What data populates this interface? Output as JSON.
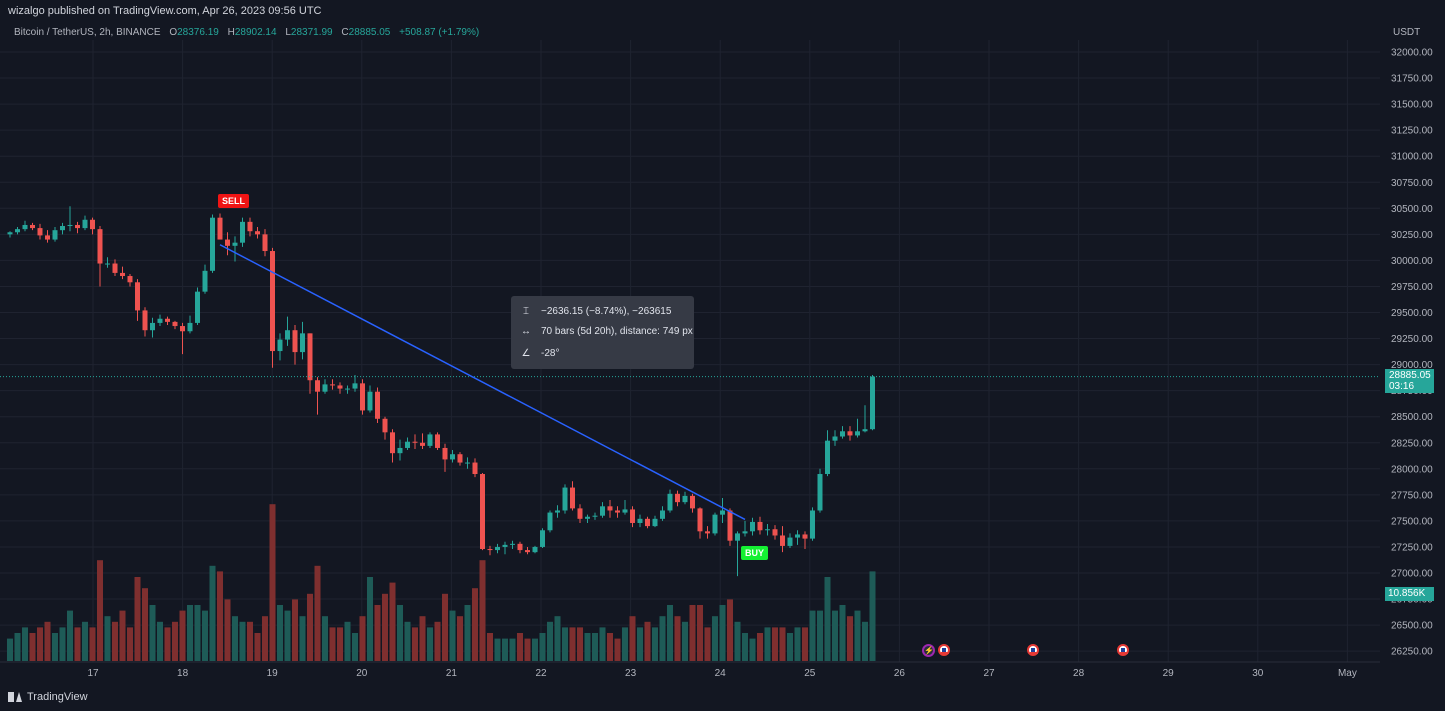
{
  "header": {
    "publisher_text": "wizalgo published on TradingView.com, Apr 26, 2023 09:56 UTC",
    "symbol": "Bitcoin / TetherUS, 2h, BINANCE",
    "o_label": "O",
    "o_value": "28376.19",
    "h_label": "H",
    "h_value": "28902.14",
    "l_label": "L",
    "l_value": "28371.99",
    "c_label": "C",
    "c_value": "28885.05",
    "change": "+508.87 (+1.79%)"
  },
  "footer": {
    "brand": "TradingView"
  },
  "measure_tooltip": {
    "price_range_icon": "vertical-range-icon",
    "price_range": "−2636.15 (−8.74%), −263615",
    "bars_icon": "horizontal-range-icon",
    "bars": "70 bars (5d 20h), distance: 749 px",
    "angle_icon": "angle-icon",
    "angle": "-28°"
  },
  "signals": {
    "sell": "SELL",
    "buy": "BUY"
  },
  "last_price": {
    "value": "28885.05",
    "countdown": "03:16"
  },
  "last_volume": "10.856K",
  "colors": {
    "up": "#26a69a",
    "down": "#ef5350",
    "up_volume": "#1e5b57",
    "down_volume": "#7f2f2f",
    "trendline": "#2962ff",
    "background": "#131722"
  },
  "events": [
    {
      "icon": "lightning-icon",
      "day": "26"
    },
    {
      "icon": "us-flag-icon",
      "day": "26"
    },
    {
      "icon": "us-flag-icon",
      "day": "27"
    },
    {
      "icon": "us-flag-icon",
      "day": "28"
    }
  ],
  "chart_data": {
    "type": "candlestick",
    "quote_currency": "USDT",
    "interval": "2h",
    "ylim": [
      26250,
      32000
    ],
    "y_ticks": [
      "32000.00",
      "31750.00",
      "31500.00",
      "31250.00",
      "31000.00",
      "30750.00",
      "30500.00",
      "30250.00",
      "30000.00",
      "29750.00",
      "29500.00",
      "29250.00",
      "29000.00",
      "28750.00",
      "28500.00",
      "28250.00",
      "28000.00",
      "27750.00",
      "27500.00",
      "27250.00",
      "27000.00",
      "26750.00",
      "26500.00",
      "26250.00"
    ],
    "x_ticks": [
      "17",
      "18",
      "19",
      "20",
      "21",
      "22",
      "23",
      "24",
      "25",
      "26",
      "27",
      "28",
      "29",
      "30",
      "May"
    ],
    "grid": true,
    "trendline": {
      "from": {
        "bar": 28,
        "price": 30150
      },
      "to": {
        "bar": 98,
        "price": 27514
      }
    },
    "candles": [
      [
        30250,
        30280,
        30220,
        30270,
        2
      ],
      [
        30270,
        30320,
        30250,
        30300,
        2.5
      ],
      [
        30300,
        30380,
        30280,
        30340,
        3
      ],
      [
        30340,
        30360,
        30290,
        30310,
        2.5
      ],
      [
        30310,
        30350,
        30200,
        30240,
        3
      ],
      [
        30240,
        30290,
        30170,
        30200,
        3.5
      ],
      [
        30200,
        30320,
        30180,
        30290,
        2.5
      ],
      [
        30290,
        30360,
        30250,
        30330,
        3
      ],
      [
        30330,
        30520,
        30280,
        30340,
        4.5
      ],
      [
        30340,
        30370,
        30260,
        30310,
        3
      ],
      [
        30310,
        30430,
        30290,
        30390,
        3.5
      ],
      [
        30390,
        30410,
        30250,
        30300,
        3
      ],
      [
        30300,
        30330,
        29750,
        29970,
        9
      ],
      [
        29970,
        30030,
        29930,
        29970,
        4
      ],
      [
        29970,
        30010,
        29850,
        29880,
        3.5
      ],
      [
        29880,
        29940,
        29820,
        29850,
        4.5
      ],
      [
        29850,
        29870,
        29750,
        29790,
        3
      ],
      [
        29790,
        29820,
        29420,
        29520,
        7.5
      ],
      [
        29520,
        29550,
        29270,
        29330,
        6.5
      ],
      [
        29330,
        29450,
        29260,
        29400,
        5
      ],
      [
        29400,
        29480,
        29370,
        29440,
        3.5
      ],
      [
        29440,
        29460,
        29380,
        29410,
        3
      ],
      [
        29410,
        29420,
        29340,
        29370,
        3.5
      ],
      [
        29370,
        29400,
        29100,
        29320,
        4.5
      ],
      [
        29320,
        29470,
        29300,
        29400,
        5
      ],
      [
        29400,
        29740,
        29380,
        29700,
        5
      ],
      [
        29700,
        29960,
        29680,
        29900,
        4.5
      ],
      [
        29900,
        30440,
        29880,
        30410,
        8.5
      ],
      [
        30410,
        30450,
        30200,
        30200,
        8
      ],
      [
        30200,
        30270,
        30050,
        30140,
        5.5
      ],
      [
        30140,
        30230,
        29990,
        30170,
        4
      ],
      [
        30170,
        30410,
        30130,
        30370,
        3.5
      ],
      [
        30370,
        30410,
        30230,
        30280,
        3.5
      ],
      [
        30280,
        30320,
        30210,
        30250,
        2.5
      ],
      [
        30250,
        30300,
        30040,
        30090,
        4
      ],
      [
        30090,
        30120,
        28970,
        29130,
        14
      ],
      [
        29130,
        29300,
        29040,
        29240,
        5
      ],
      [
        29240,
        29460,
        29180,
        29330,
        4.5
      ],
      [
        29330,
        29380,
        29000,
        29120,
        5.5
      ],
      [
        29120,
        29410,
        29050,
        29300,
        4
      ],
      [
        29300,
        29300,
        28720,
        28850,
        6
      ],
      [
        28850,
        28880,
        28520,
        28740,
        8.5
      ],
      [
        28740,
        28860,
        28720,
        28810,
        4
      ],
      [
        28810,
        28860,
        28760,
        28800,
        3
      ],
      [
        28800,
        28830,
        28720,
        28770,
        3
      ],
      [
        28770,
        28800,
        28720,
        28770,
        3.5
      ],
      [
        28770,
        28900,
        28740,
        28820,
        2.5
      ],
      [
        28820,
        28860,
        28520,
        28560,
        4
      ],
      [
        28560,
        28800,
        28540,
        28740,
        7.5
      ],
      [
        28740,
        28780,
        28440,
        28480,
        5
      ],
      [
        28480,
        28500,
        28280,
        28350,
        6
      ],
      [
        28350,
        28380,
        28060,
        28150,
        7
      ],
      [
        28150,
        28280,
        28080,
        28200,
        5
      ],
      [
        28200,
        28300,
        28180,
        28260,
        3.5
      ],
      [
        28260,
        28330,
        28190,
        28250,
        3
      ],
      [
        28250,
        28340,
        28190,
        28220,
        4
      ],
      [
        28220,
        28350,
        28200,
        28330,
        3
      ],
      [
        28330,
        28350,
        28180,
        28200,
        3.5
      ],
      [
        28200,
        28240,
        27970,
        28090,
        6
      ],
      [
        28090,
        28180,
        28060,
        28140,
        4.5
      ],
      [
        28140,
        28160,
        28030,
        28060,
        4
      ],
      [
        28060,
        28110,
        28000,
        28060,
        5
      ],
      [
        28060,
        28100,
        27920,
        27950,
        6.5
      ],
      [
        27950,
        27960,
        27220,
        27230,
        9
      ],
      [
        27230,
        27260,
        27170,
        27220,
        2.5
      ],
      [
        27220,
        27280,
        27190,
        27250,
        2
      ],
      [
        27250,
        27300,
        27180,
        27270,
        2
      ],
      [
        27270,
        27310,
        27230,
        27280,
        2
      ],
      [
        27280,
        27300,
        27190,
        27220,
        2.5
      ],
      [
        27220,
        27250,
        27180,
        27200,
        2
      ],
      [
        27200,
        27260,
        27190,
        27250,
        2
      ],
      [
        27250,
        27430,
        27240,
        27410,
        2.5
      ],
      [
        27410,
        27600,
        27390,
        27580,
        3.5
      ],
      [
        27580,
        27650,
        27530,
        27600,
        4
      ],
      [
        27600,
        27850,
        27570,
        27820,
        3
      ],
      [
        27820,
        27880,
        27600,
        27620,
        3
      ],
      [
        27620,
        27660,
        27480,
        27520,
        3
      ],
      [
        27520,
        27560,
        27480,
        27540,
        2.5
      ],
      [
        27540,
        27580,
        27510,
        27550,
        2.5
      ],
      [
        27550,
        27680,
        27530,
        27640,
        3
      ],
      [
        27640,
        27700,
        27530,
        27600,
        2.5
      ],
      [
        27600,
        27640,
        27530,
        27580,
        2
      ],
      [
        27580,
        27700,
        27560,
        27610,
        3
      ],
      [
        27610,
        27640,
        27440,
        27480,
        4
      ],
      [
        27480,
        27560,
        27440,
        27520,
        3
      ],
      [
        27520,
        27540,
        27430,
        27450,
        3.5
      ],
      [
        27450,
        27550,
        27440,
        27520,
        3
      ],
      [
        27520,
        27640,
        27500,
        27600,
        4
      ],
      [
        27600,
        27800,
        27580,
        27760,
        5
      ],
      [
        27760,
        27790,
        27640,
        27680,
        4
      ],
      [
        27680,
        27780,
        27660,
        27740,
        3.5
      ],
      [
        27740,
        27760,
        27580,
        27620,
        5
      ],
      [
        27620,
        27630,
        27330,
        27400,
        5
      ],
      [
        27400,
        27450,
        27330,
        27380,
        3
      ],
      [
        27380,
        27580,
        27360,
        27560,
        4
      ],
      [
        27560,
        27720,
        27480,
        27600,
        5
      ],
      [
        27600,
        27620,
        27260,
        27310,
        5.5
      ],
      [
        27310,
        27400,
        26970,
        27380,
        3.5
      ],
      [
        27380,
        27500,
        27350,
        27400,
        2.5
      ],
      [
        27400,
        27530,
        27360,
        27490,
        2
      ],
      [
        27490,
        27540,
        27370,
        27410,
        2.5
      ],
      [
        27410,
        27470,
        27360,
        27420,
        3
      ],
      [
        27420,
        27460,
        27320,
        27360,
        3
      ],
      [
        27360,
        27450,
        27200,
        27260,
        3
      ],
      [
        27260,
        27380,
        27240,
        27340,
        2.5
      ],
      [
        27340,
        27410,
        27270,
        27370,
        3
      ],
      [
        27370,
        27400,
        27230,
        27330,
        3
      ],
      [
        27330,
        27630,
        27310,
        27600,
        4.5
      ],
      [
        27600,
        28000,
        27580,
        27950,
        4.5
      ],
      [
        27950,
        28370,
        27930,
        28270,
        7.5
      ],
      [
        28270,
        28370,
        28220,
        28310,
        4.5
      ],
      [
        28310,
        28410,
        28290,
        28360,
        5
      ],
      [
        28360,
        28410,
        28270,
        28320,
        4
      ],
      [
        28320,
        28480,
        28300,
        28360,
        4.5
      ],
      [
        28360,
        28610,
        28350,
        28380,
        3.5
      ],
      [
        28380,
        28900,
        28370,
        28885,
        8
      ]
    ]
  }
}
